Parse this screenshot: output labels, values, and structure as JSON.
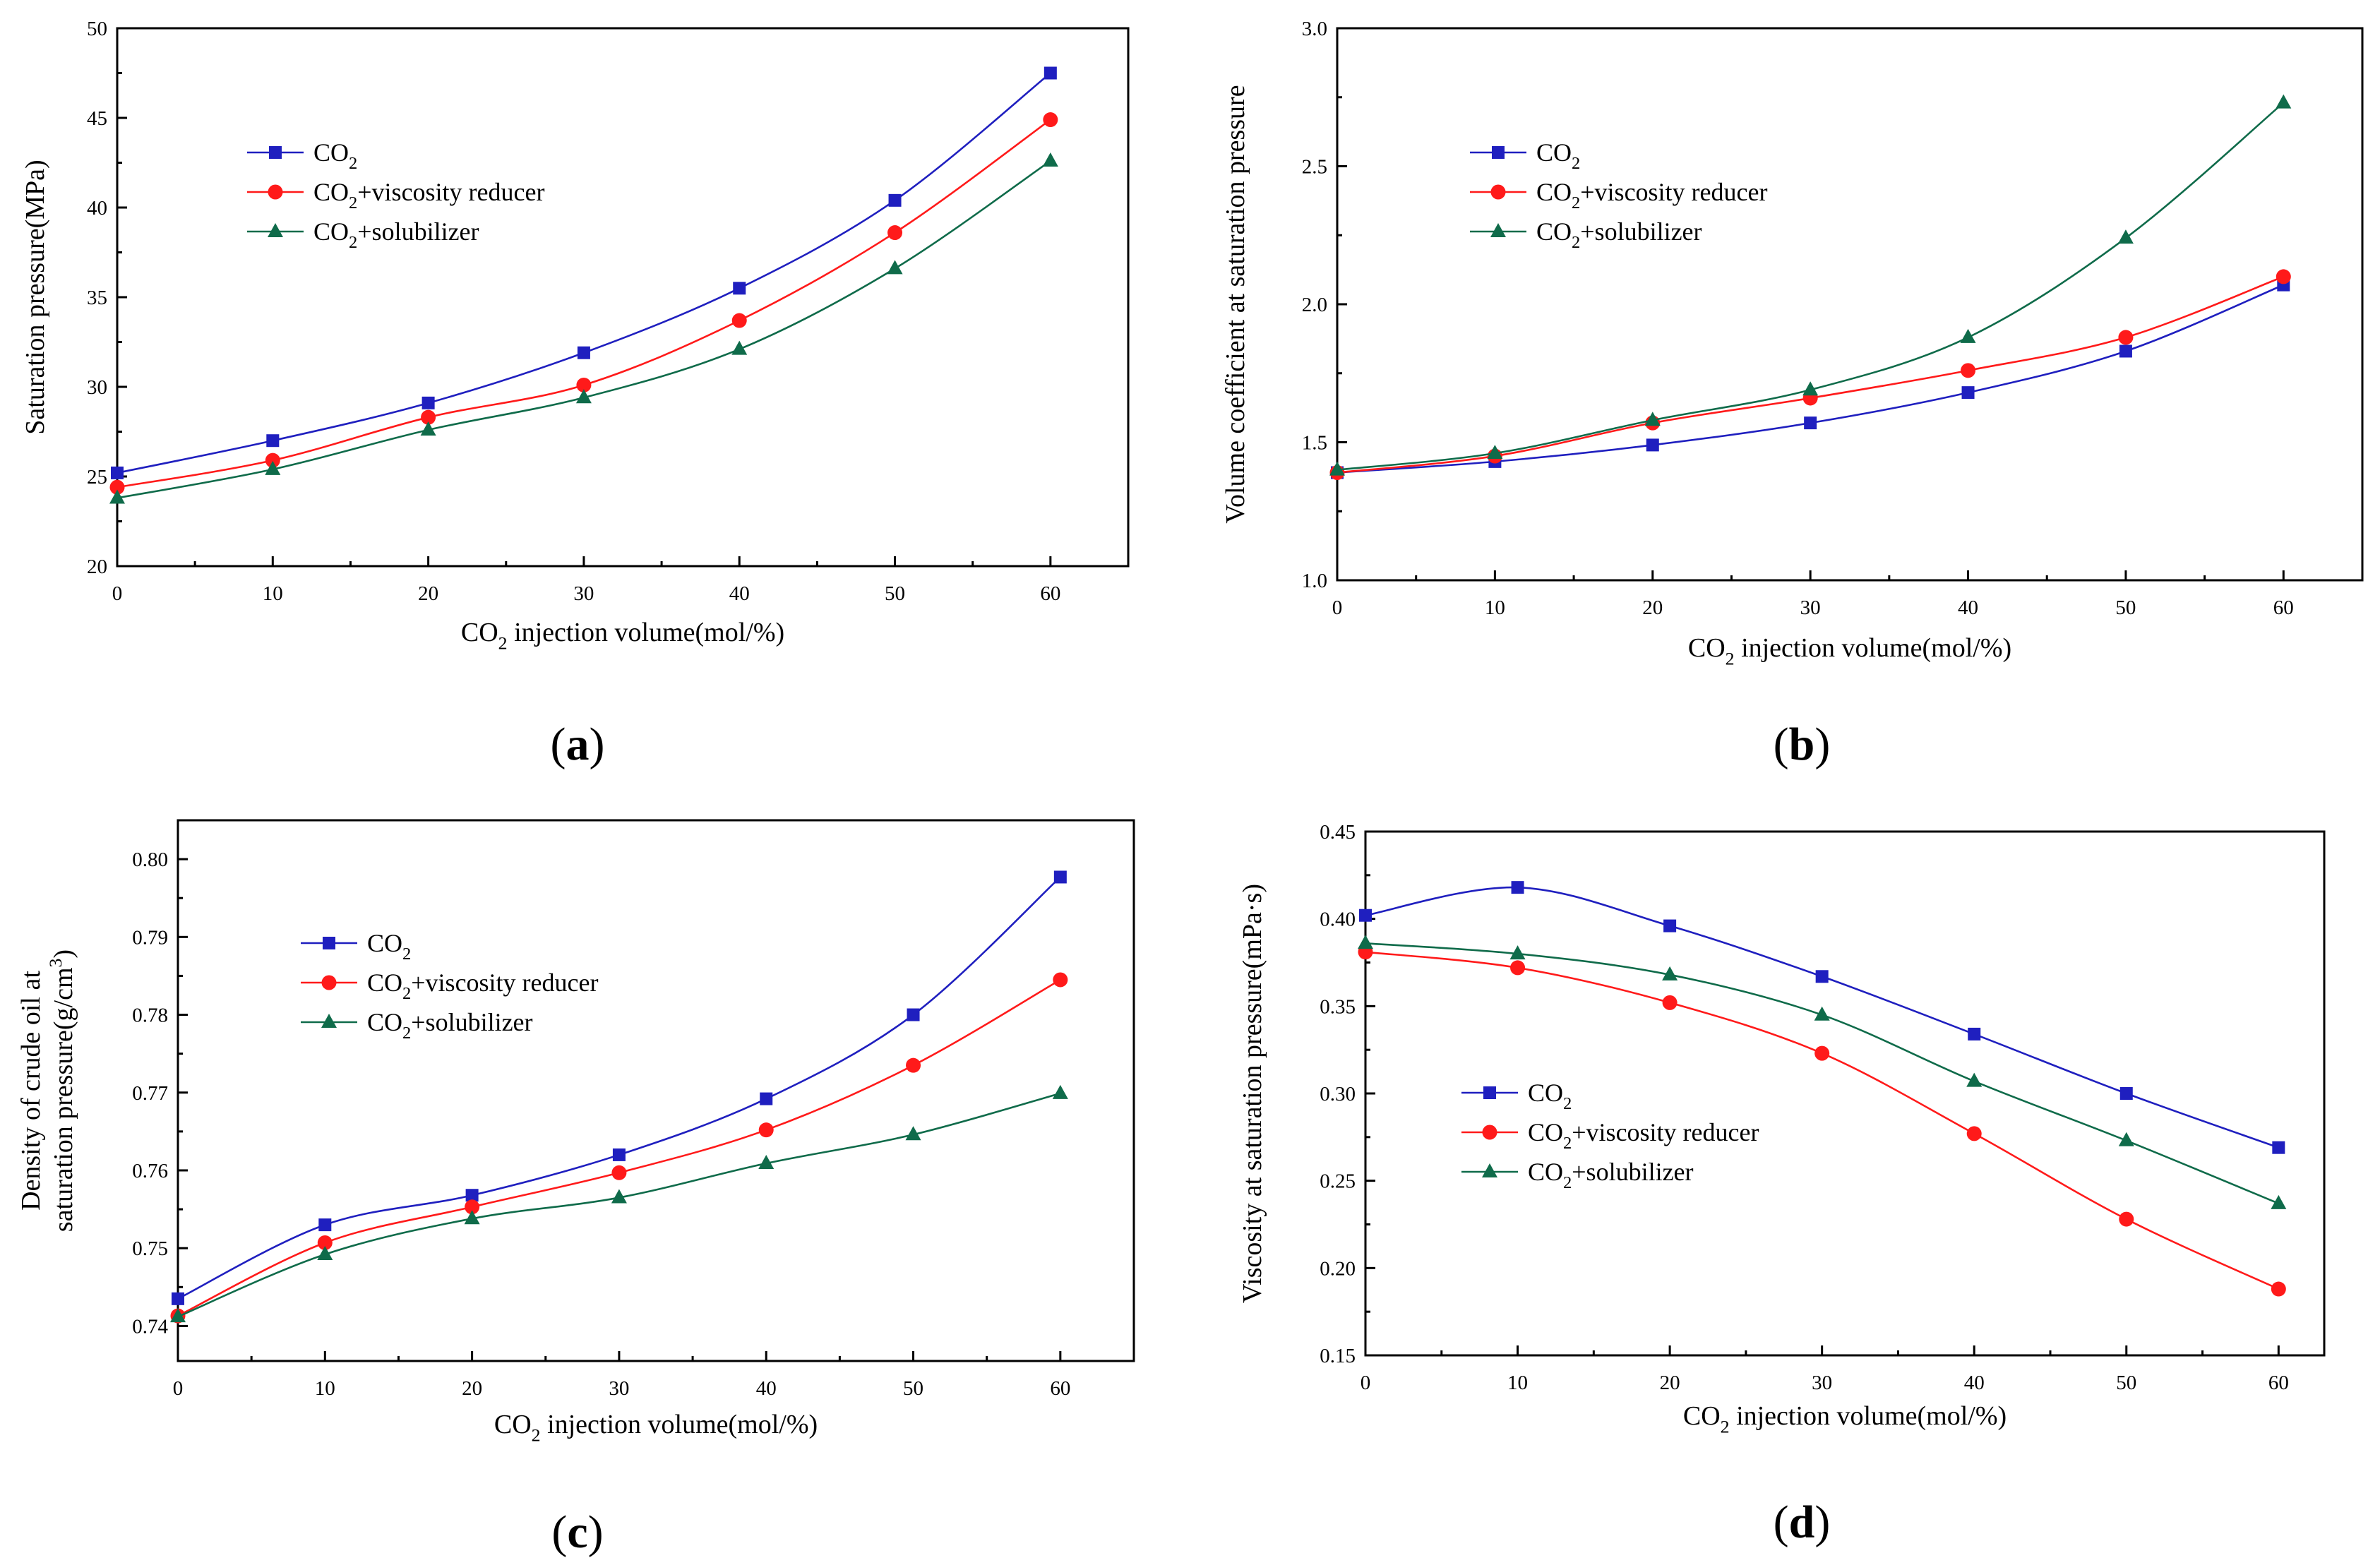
{
  "colors": {
    "CO2": "#1f1fbf",
    "CO2+viscosity reducer": "#ff1a1a",
    "CO2+solubilizer": "#0f6b4a"
  },
  "chart_data": [
    {
      "panel": "(a)",
      "type": "line",
      "xlabel": "CO2 injection volume(mol/%)",
      "ylabel": "Saturation pressure(MPa)",
      "xlim": [
        0,
        65
      ],
      "ylim": [
        20,
        50
      ],
      "xticks": [
        "0",
        "10",
        "20",
        "30",
        "40",
        "50",
        "60"
      ],
      "yticks": [
        "20",
        "25",
        "30",
        "35",
        "40",
        "45",
        "50"
      ],
      "legend_position": "upper-left",
      "x": [
        0,
        10,
        20,
        30,
        40,
        50,
        60
      ],
      "series": [
        {
          "name": "CO2",
          "marker": "square",
          "values": [
            25.2,
            27.0,
            29.1,
            31.9,
            35.5,
            40.4,
            47.5
          ]
        },
        {
          "name": "CO2+viscosity reducer",
          "marker": "circle",
          "values": [
            24.4,
            25.9,
            28.3,
            30.1,
            33.7,
            38.6,
            44.9
          ]
        },
        {
          "name": "CO2+solubilizer",
          "marker": "triangle",
          "values": [
            23.8,
            25.4,
            27.6,
            29.4,
            32.1,
            36.6,
            42.6
          ]
        }
      ]
    },
    {
      "panel": "(b)",
      "type": "line",
      "xlabel": "CO2 injection volume(mol/%)",
      "ylabel": "Volume coefficient at saturation pressure",
      "xlim": [
        0,
        65
      ],
      "ylim": [
        1.0,
        3.0
      ],
      "xticks": [
        "0",
        "10",
        "20",
        "30",
        "40",
        "50",
        "60"
      ],
      "yticks": [
        "1.0",
        "1.5",
        "2.0",
        "2.5",
        "3.0"
      ],
      "legend_position": "upper-left",
      "x": [
        0,
        10,
        20,
        30,
        40,
        50,
        60
      ],
      "series": [
        {
          "name": "CO2",
          "marker": "square",
          "values": [
            1.39,
            1.43,
            1.49,
            1.57,
            1.68,
            1.83,
            2.07
          ]
        },
        {
          "name": "CO2+viscosity reducer",
          "marker": "circle",
          "values": [
            1.39,
            1.45,
            1.57,
            1.66,
            1.76,
            1.88,
            2.1
          ]
        },
        {
          "name": "CO2+solubilizer",
          "marker": "triangle",
          "values": [
            1.4,
            1.46,
            1.58,
            1.69,
            1.88,
            2.24,
            2.73
          ]
        }
      ]
    },
    {
      "panel": "(c)",
      "type": "line",
      "xlabel": "CO2 injection volume(mol/%)",
      "ylabel": "Density of crude oil at saturation pressure(g/cm3)",
      "xlim": [
        0,
        65
      ],
      "ylim": [
        0.7355,
        0.805
      ],
      "xticks": [
        "0",
        "10",
        "20",
        "30",
        "40",
        "50",
        "60"
      ],
      "yticks": [
        "0.74",
        "0.75",
        "0.76",
        "0.77",
        "0.78",
        "0.79",
        "0.80"
      ],
      "legend_position": "upper-left",
      "x": [
        0,
        10,
        20,
        30,
        40,
        50,
        60
      ],
      "series": [
        {
          "name": "CO2",
          "marker": "square",
          "values": [
            0.7435,
            0.753,
            0.7568,
            0.762,
            0.7692,
            0.78,
            0.7977
          ]
        },
        {
          "name": "CO2+viscosity reducer",
          "marker": "circle",
          "values": [
            0.7413,
            0.7507,
            0.7553,
            0.7597,
            0.7652,
            0.7735,
            0.7845
          ]
        },
        {
          "name": "CO2+solubilizer",
          "marker": "triangle",
          "values": [
            0.7412,
            0.7492,
            0.7538,
            0.7565,
            0.7609,
            0.7646,
            0.7699
          ]
        }
      ]
    },
    {
      "panel": "(d)",
      "type": "line",
      "xlabel": "CO2 injection volume(mol/%)",
      "ylabel": "Viscosity at saturation pressure(mPa·s)",
      "xlim": [
        0,
        63
      ],
      "ylim": [
        0.15,
        0.45
      ],
      "xticks": [
        "0",
        "10",
        "20",
        "30",
        "40",
        "50",
        "60"
      ],
      "yticks": [
        "0.15",
        "0.20",
        "0.25",
        "0.30",
        "0.35",
        "0.40",
        "0.45"
      ],
      "legend_position": "lower-left",
      "x": [
        0,
        10,
        20,
        30,
        40,
        50,
        60
      ],
      "series": [
        {
          "name": "CO2",
          "marker": "square",
          "values": [
            0.402,
            0.418,
            0.396,
            0.367,
            0.334,
            0.3,
            0.269
          ]
        },
        {
          "name": "CO2+viscosity reducer",
          "marker": "circle",
          "values": [
            0.381,
            0.372,
            0.352,
            0.323,
            0.277,
            0.228,
            0.188
          ]
        },
        {
          "name": "CO2+solubilizer",
          "marker": "triangle",
          "values": [
            0.386,
            0.38,
            0.368,
            0.345,
            0.307,
            0.273,
            0.237
          ]
        }
      ]
    }
  ]
}
